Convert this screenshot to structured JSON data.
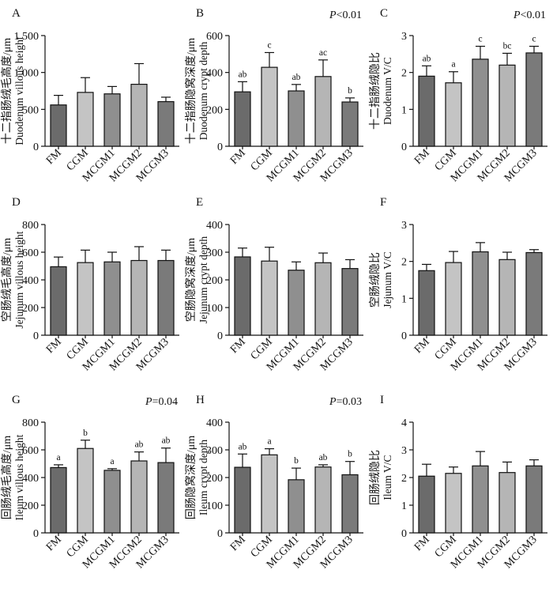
{
  "categories": [
    "FM",
    "CGM",
    "MCGM1",
    "MCGM2",
    "MCGM3"
  ],
  "colors": {
    "bars": [
      "#6b6b6b",
      "#c4c4c4",
      "#8f8f8f",
      "#b5b5b5",
      "#7a7a7a"
    ],
    "edge": "#111111"
  },
  "chart_data": [
    {
      "type": "bar",
      "panel": "A",
      "ylabel_zh": "十二指肠绒毛高度/μm",
      "ylabel_en": "Duodenum villous height",
      "categories": [
        "FM",
        "CGM",
        "MCGM1",
        "MCGM2",
        "MCGM3"
      ],
      "values": [
        560,
        730,
        710,
        840,
        605
      ],
      "errors": [
        130,
        200,
        100,
        280,
        60
      ],
      "letters": [
        "",
        "",
        "",
        "",
        ""
      ],
      "pvalue": "",
      "ylim": [
        0,
        1500
      ],
      "yticks": [
        0,
        500,
        1000,
        1500
      ],
      "ytick_labels": [
        "0",
        "500",
        "1 000",
        "1 500"
      ]
    },
    {
      "type": "bar",
      "panel": "B",
      "ylabel_zh": "十二指肠隐窝深度/μm",
      "ylabel_en": "Duodenum crypt depth",
      "categories": [
        "FM",
        "CGM",
        "MCGM1",
        "MCGM2",
        "MCGM3"
      ],
      "values": [
        295,
        428,
        300,
        378,
        240
      ],
      "errors": [
        55,
        80,
        35,
        90,
        22
      ],
      "letters": [
        "ab",
        "c",
        "ab",
        "ac",
        "b"
      ],
      "pvalue": "P<0.01",
      "ylim": [
        0,
        600
      ],
      "yticks": [
        0,
        200,
        400,
        600
      ],
      "ytick_labels": [
        "0",
        "200",
        "400",
        "600"
      ]
    },
    {
      "type": "bar",
      "panel": "C",
      "ylabel_zh": "十二指肠绒隐比",
      "ylabel_en": "Duodenum V/C",
      "categories": [
        "FM",
        "CGM",
        "MCGM1",
        "MCGM2",
        "MCGM3"
      ],
      "values": [
        1.9,
        1.72,
        2.36,
        2.2,
        2.53
      ],
      "errors": [
        0.28,
        0.3,
        0.35,
        0.32,
        0.18
      ],
      "letters": [
        "ab",
        "a",
        "c",
        "bc",
        "c"
      ],
      "pvalue": "P<0.01",
      "ylim": [
        0,
        3
      ],
      "yticks": [
        0,
        1,
        2,
        3
      ],
      "ytick_labels": [
        "0",
        "1",
        "2",
        "3"
      ]
    },
    {
      "type": "bar",
      "panel": "D",
      "ylabel_zh": "空肠绒毛高度/μm",
      "ylabel_en": "Jejunum villous height",
      "categories": [
        "FM",
        "CGM",
        "MCGM1",
        "MCGM2",
        "MCGM3"
      ],
      "values": [
        495,
        525,
        530,
        540,
        540
      ],
      "errors": [
        70,
        90,
        70,
        100,
        75
      ],
      "letters": [
        "",
        "",
        "",
        "",
        ""
      ],
      "pvalue": "",
      "ylim": [
        0,
        800
      ],
      "yticks": [
        0,
        200,
        400,
        600,
        800
      ],
      "ytick_labels": [
        "0",
        "200",
        "400",
        "600",
        "800"
      ]
    },
    {
      "type": "bar",
      "panel": "E",
      "ylabel_zh": "空肠隐窝深度/μm",
      "ylabel_en": "Jejunum crypt depth",
      "categories": [
        "FM",
        "CGM",
        "MCGM1",
        "MCGM2",
        "MCGM3"
      ],
      "values": [
        283,
        268,
        235,
        262,
        241
      ],
      "errors": [
        32,
        50,
        30,
        35,
        32
      ],
      "letters": [
        "",
        "",
        "",
        "",
        ""
      ],
      "pvalue": "",
      "ylim": [
        0,
        400
      ],
      "yticks": [
        0,
        100,
        200,
        300,
        400
      ],
      "ytick_labels": [
        "0",
        "100",
        "200",
        "300",
        "400"
      ]
    },
    {
      "type": "bar",
      "panel": "F",
      "ylabel_zh": "空肠绒隐比",
      "ylabel_en": "Jejunum V/C",
      "categories": [
        "FM",
        "CGM",
        "MCGM1",
        "MCGM2",
        "MCGM3"
      ],
      "values": [
        1.75,
        1.97,
        2.26,
        2.05,
        2.24
      ],
      "errors": [
        0.17,
        0.3,
        0.25,
        0.2,
        0.08
      ],
      "letters": [
        "",
        "",
        "",
        "",
        ""
      ],
      "pvalue": "",
      "ylim": [
        0,
        3
      ],
      "yticks": [
        0,
        1,
        2,
        3
      ],
      "ytick_labels": [
        "0",
        "1",
        "2",
        "3"
      ]
    },
    {
      "type": "bar",
      "panel": "G",
      "ylabel_zh": "回肠绒毛高度/μm",
      "ylabel_en": "Ileum villous height",
      "categories": [
        "FM",
        "CGM",
        "MCGM1",
        "MCGM2",
        "MCGM3"
      ],
      "values": [
        472,
        610,
        452,
        520,
        508
      ],
      "errors": [
        20,
        60,
        12,
        65,
        105
      ],
      "letters": [
        "a",
        "b",
        "a",
        "ab",
        "ab"
      ],
      "pvalue": "P=0.04",
      "ylim": [
        0,
        800
      ],
      "yticks": [
        0,
        200,
        400,
        600,
        800
      ],
      "ytick_labels": [
        "0",
        "200",
        "400",
        "600",
        "800"
      ]
    },
    {
      "type": "bar",
      "panel": "H",
      "ylabel_zh": "回肠隐窝深度/μm",
      "ylabel_en": "Ileum crypt depth",
      "categories": [
        "FM",
        "CGM",
        "MCGM1",
        "MCGM2",
        "MCGM3"
      ],
      "values": [
        237,
        282,
        192,
        238,
        210
      ],
      "errors": [
        48,
        22,
        42,
        8,
        48
      ],
      "letters": [
        "ab",
        "a",
        "b",
        "ab",
        "b"
      ],
      "pvalue": "P=0.03",
      "ylim": [
        0,
        400
      ],
      "yticks": [
        0,
        100,
        200,
        300,
        400
      ],
      "ytick_labels": [
        "0",
        "100",
        "200",
        "300",
        "400"
      ]
    },
    {
      "type": "bar",
      "panel": "I",
      "ylabel_zh": "回肠绒隐比",
      "ylabel_en": "Ileum V/C",
      "categories": [
        "FM",
        "CGM",
        "MCGM1",
        "MCGM2",
        "MCGM3"
      ],
      "values": [
        2.05,
        2.15,
        2.42,
        2.18,
        2.42
      ],
      "errors": [
        0.43,
        0.23,
        0.52,
        0.38,
        0.22
      ],
      "letters": [
        "",
        "",
        "",
        "",
        ""
      ],
      "pvalue": "",
      "ylim": [
        0,
        4
      ],
      "yticks": [
        0,
        1,
        2,
        3,
        4
      ],
      "ytick_labels": [
        "0",
        "1",
        "2",
        "3",
        "4"
      ]
    }
  ]
}
